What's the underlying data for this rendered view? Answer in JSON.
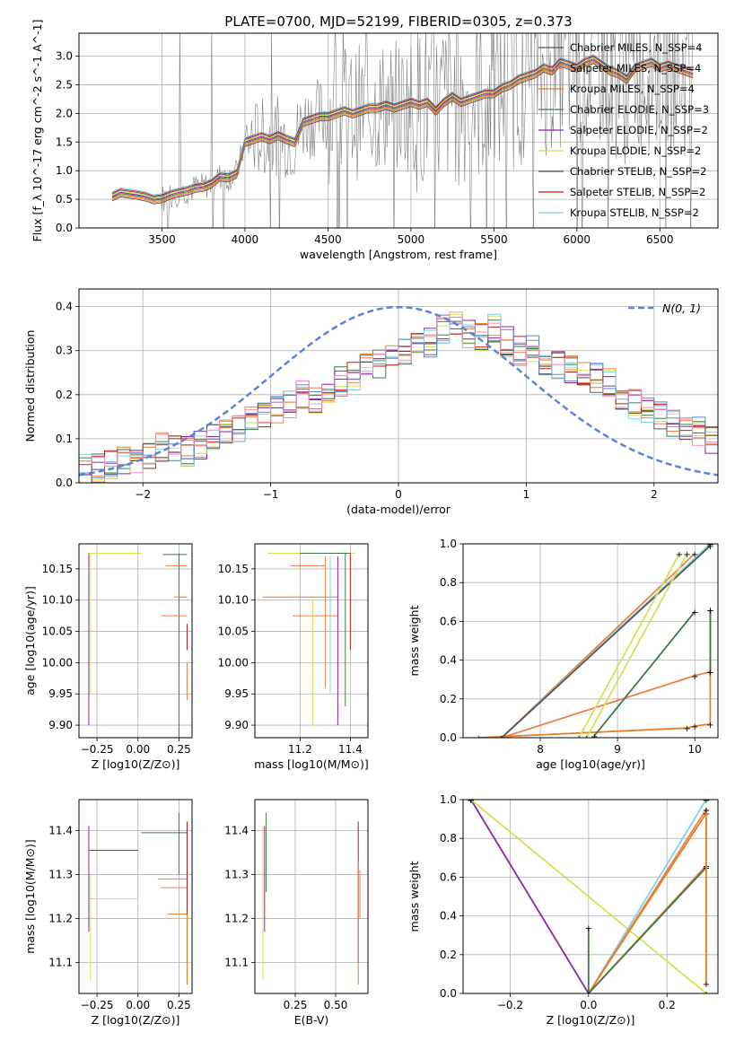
{
  "colors": {
    "palette": [
      "#ef7f4a",
      "#ef7f4a",
      "#e67e22",
      "#3d7a4a",
      "#8e24aa",
      "#d4e157",
      "#555555",
      "#b71c1c",
      "#80d4e8"
    ],
    "miles_chabrier": "#808080",
    "normal_curve": "#5b84d8",
    "grid": "#b0b0b0"
  },
  "chart_data": [
    {
      "id": "spectrum",
      "type": "line",
      "title": "PLATE=0700, MJD=52199, FIBERID=0305, z=0.373",
      "xlabel": "wavelength [Angstrom, rest frame]",
      "ylabel": "Flux [f_λ 10^-17 erg cm^-2 s^-1 A^-1]",
      "xlim": [
        3000,
        6850
      ],
      "ylim": [
        0,
        3.4
      ],
      "xticks": [
        "3500",
        "4000",
        "4500",
        "5000",
        "5500",
        "6000",
        "6500"
      ],
      "yticks": [
        "0.0",
        "0.5",
        "1.0",
        "1.5",
        "2.0",
        "2.5",
        "3.0"
      ],
      "grid": true,
      "legend_position": "top-right",
      "legend": [
        "Chabrier MILES, N_SSP=4",
        "Salpeter MILES, N_SSP=4",
        "Kroupa MILES, N_SSP=4",
        "Chabrier ELODIE, N_SSP=3",
        "Salpeter ELODIE, N_SSP=2",
        "Kroupa ELODIE, N_SSP=2",
        "Chabrier STELIB, N_SSP=2",
        "Salpeter STELIB, N_SSP=2",
        "Kroupa STELIB, N_SSP=2"
      ],
      "legend_colors": [
        "#555555",
        "#ef7f4a",
        "#e67e22",
        "#3d7a4a",
        "#8e24aa",
        "#d4e157",
        "#555555",
        "#b71c1c",
        "#80d4e8"
      ],
      "model_x": [
        3200,
        3250,
        3300,
        3350,
        3400,
        3450,
        3500,
        3550,
        3600,
        3650,
        3700,
        3750,
        3800,
        3850,
        3900,
        3950,
        4000,
        4050,
        4100,
        4150,
        4200,
        4250,
        4300,
        4350,
        4400,
        4450,
        4500,
        4550,
        4600,
        4650,
        4700,
        4750,
        4800,
        4850,
        4900,
        4950,
        5000,
        5050,
        5100,
        5150,
        5200,
        5250,
        5300,
        5350,
        5400,
        5450,
        5500,
        5550,
        5600,
        5650,
        5700,
        5750,
        5800,
        5850,
        5900,
        5950,
        6000,
        6050,
        6100,
        6150,
        6200,
        6250,
        6300,
        6350,
        6400,
        6450,
        6500,
        6550,
        6600,
        6650,
        6700
      ],
      "model_y": [
        0.55,
        0.62,
        0.6,
        0.58,
        0.55,
        0.5,
        0.52,
        0.58,
        0.62,
        0.65,
        0.7,
        0.72,
        0.78,
        0.9,
        0.88,
        0.95,
        1.5,
        1.55,
        1.6,
        1.55,
        1.62,
        1.55,
        1.5,
        1.85,
        1.9,
        1.95,
        1.95,
        2.0,
        2.05,
        2.0,
        2.05,
        2.1,
        2.1,
        2.15,
        2.1,
        2.15,
        2.2,
        2.15,
        2.2,
        2.05,
        2.2,
        2.3,
        2.2,
        2.25,
        2.3,
        2.35,
        2.35,
        2.45,
        2.5,
        2.6,
        2.65,
        2.7,
        2.8,
        2.75,
        2.9,
        2.85,
        2.8,
        2.9,
        2.95,
        2.85,
        2.75,
        2.7,
        2.6,
        2.8,
        2.85,
        2.9,
        2.8,
        2.85,
        2.8,
        2.75,
        2.7
      ]
    },
    {
      "id": "residuals",
      "type": "line",
      "xlabel": "(data-model)/error",
      "ylabel": "Normed distribution",
      "xlim": [
        -2.5,
        2.5
      ],
      "ylim": [
        0,
        0.44
      ],
      "xticks": [
        "−2",
        "−1",
        "0",
        "1",
        "2"
      ],
      "yticks": [
        "0.0",
        "0.1",
        "0.2",
        "0.3",
        "0.4"
      ],
      "grid": true,
      "legend_position": "top-right",
      "legend": [
        "N(0, 1)"
      ],
      "hist_bin_width": 0.1,
      "hist_x_start": -2.5,
      "hist_y": [
        0.03,
        0.035,
        0.04,
        0.05,
        0.045,
        0.06,
        0.08,
        0.075,
        0.07,
        0.085,
        0.1,
        0.11,
        0.12,
        0.14,
        0.16,
        0.17,
        0.18,
        0.2,
        0.19,
        0.21,
        0.23,
        0.24,
        0.26,
        0.27,
        0.29,
        0.3,
        0.31,
        0.32,
        0.35,
        0.36,
        0.34,
        0.33,
        0.35,
        0.32,
        0.3,
        0.31,
        0.28,
        0.27,
        0.26,
        0.25,
        0.24,
        0.23,
        0.2,
        0.18,
        0.17,
        0.15,
        0.14,
        0.13,
        0.12,
        0.1
      ]
    },
    {
      "id": "age-vs-Z",
      "type": "scatter",
      "xlabel": "Z [log10(Z/Z⊙)]",
      "ylabel": "age  [log10(age/yr)]",
      "xlim": [
        -0.36,
        0.33
      ],
      "ylim": [
        9.88,
        10.19
      ],
      "xticks": [
        "−0.25",
        "0.00",
        "0.25"
      ],
      "yticks": [
        "9.90",
        "9.95",
        "10.00",
        "10.05",
        "10.10",
        "10.15"
      ],
      "grid": true,
      "segments": [
        {
          "x": [
            -0.3,
            0.02
          ],
          "y": [
            10.175,
            10.175
          ],
          "c": 5
        },
        {
          "x": [
            -0.3,
            -0.3
          ],
          "y": [
            9.9,
            10.175
          ],
          "c": 4
        },
        {
          "x": [
            -0.29,
            -0.29
          ],
          "y": [
            9.95,
            10.175
          ],
          "c": 5
        },
        {
          "x": [
            0.15,
            0.3
          ],
          "y": [
            10.173,
            10.173
          ],
          "c": 3
        },
        {
          "x": [
            0.25,
            0.25
          ],
          "y": [
            9.88,
            10.175
          ],
          "c": 3
        },
        {
          "x": [
            0.17,
            0.3
          ],
          "y": [
            10.155,
            10.155
          ],
          "c": 0
        },
        {
          "x": [
            0.22,
            0.3
          ],
          "y": [
            10.105,
            10.105
          ],
          "c": 2
        },
        {
          "x": [
            0.14,
            0.3
          ],
          "y": [
            10.075,
            10.075
          ],
          "c": 1
        },
        {
          "x": [
            0.3,
            0.3
          ],
          "y": [
            10.02,
            10.062
          ],
          "c": 7
        },
        {
          "x": [
            0.3,
            0.3
          ],
          "y": [
            9.94,
            10.0
          ],
          "c": 1
        }
      ]
    },
    {
      "id": "age-vs-mass",
      "type": "scatter",
      "xlabel": "mass [log10(M/M⊙)]",
      "ylabel": "",
      "xlim": [
        11.02,
        11.47
      ],
      "ylim": [
        9.88,
        10.19
      ],
      "xticks": [
        "11.2",
        "11.4"
      ],
      "yticks": [
        "10.15",
        "10.10",
        "10.05",
        "10.00",
        "9.95",
        "9.90"
      ],
      "grid": true,
      "segments": [
        {
          "x": [
            11.07,
            11.42
          ],
          "y": [
            10.175,
            10.175
          ],
          "c": 5
        },
        {
          "x": [
            11.2,
            11.4
          ],
          "y": [
            10.175,
            10.175
          ],
          "c": 3
        },
        {
          "x": [
            11.16,
            11.3
          ],
          "y": [
            10.155,
            10.155
          ],
          "c": 0
        },
        {
          "x": [
            11.05,
            11.35
          ],
          "y": [
            10.105,
            10.105
          ],
          "c": 2
        },
        {
          "x": [
            11.17,
            11.35
          ],
          "y": [
            10.075,
            10.075
          ],
          "c": 1
        },
        {
          "x": [
            11.25,
            11.25
          ],
          "y": [
            9.9,
            10.1
          ],
          "c": 5
        },
        {
          "x": [
            11.3,
            11.3
          ],
          "y": [
            9.96,
            10.17
          ],
          "c": 0
        },
        {
          "x": [
            11.32,
            11.32
          ],
          "y": [
            9.95,
            10.17
          ],
          "c": 8
        },
        {
          "x": [
            11.35,
            11.35
          ],
          "y": [
            9.9,
            10.17
          ],
          "c": 4
        },
        {
          "x": [
            11.4,
            11.4
          ],
          "y": [
            10.02,
            10.175
          ],
          "c": 7
        },
        {
          "x": [
            11.38,
            11.38
          ],
          "y": [
            9.93,
            10.175
          ],
          "c": 3
        }
      ]
    },
    {
      "id": "mass-weight-vs-age",
      "type": "line",
      "xlabel": "age  [log10(age/yr)]",
      "ylabel": "mass weight",
      "xlim": [
        7.0,
        10.3
      ],
      "ylim": [
        0,
        1.0
      ],
      "xticks": [
        "8",
        "9",
        "10"
      ],
      "yticks": [
        "0.0",
        "0.2",
        "0.4",
        "0.6",
        "0.8",
        "1.0"
      ],
      "grid": true,
      "series": [
        {
          "x": [
            7.5,
            10.0,
            10.2,
            10.2
          ],
          "y": [
            0.0,
            0.32,
            0.34,
            0.66
          ],
          "c": 0
        },
        {
          "x": [
            7.2,
            9.9,
            10.0,
            10.2,
            10.2
          ],
          "y": [
            0.0,
            0.05,
            0.06,
            0.07,
            0.66
          ],
          "c": 2
        },
        {
          "x": [
            7.5,
            10.0
          ],
          "y": [
            0.0,
            0.95
          ],
          "c": 1
        },
        {
          "x": [
            7.5,
            10.2
          ],
          "y": [
            0.0,
            1.0
          ],
          "c": 8
        },
        {
          "x": [
            7.5,
            10.2
          ],
          "y": [
            0.0,
            0.99
          ],
          "c": 6
        },
        {
          "x": [
            8.5,
            9.8
          ],
          "y": [
            0.0,
            0.95
          ],
          "c": 5
        },
        {
          "x": [
            8.6,
            9.9
          ],
          "y": [
            0.0,
            0.95
          ],
          "c": 5
        },
        {
          "x": [
            8.7,
            10.0
          ],
          "y": [
            0.01,
            0.65
          ],
          "c": 3
        },
        {
          "x": [
            10.2,
            10.2
          ],
          "y": [
            0.34,
            0.66
          ],
          "c": 3
        }
      ]
    },
    {
      "id": "mass-vs-Z",
      "type": "scatter",
      "xlabel": "Z [log10(Z/Z⊙)]",
      "ylabel": "mass [log10(M/M⊙)]",
      "xlim": [
        -0.36,
        0.33
      ],
      "ylim": [
        11.03,
        11.47
      ],
      "xticks": [
        "−0.25",
        "0.00",
        "0.25"
      ],
      "yticks": [
        "11.1",
        "11.2",
        "11.3",
        "11.4"
      ],
      "grid": true,
      "segments": [
        {
          "x": [
            -0.3,
            0.0
          ],
          "y": [
            11.355,
            11.355
          ],
          "c": 4
        },
        {
          "x": [
            -0.3,
            0.0
          ],
          "y": [
            11.245,
            11.245
          ],
          "c": 5
        },
        {
          "x": [
            -0.3,
            -0.3
          ],
          "y": [
            11.17,
            11.41
          ],
          "c": 4
        },
        {
          "x": [
            -0.29,
            -0.29
          ],
          "y": [
            11.06,
            11.3
          ],
          "c": 5
        },
        {
          "x": [
            0.02,
            0.3
          ],
          "y": [
            11.395,
            11.395
          ],
          "c": 3
        },
        {
          "x": [
            0.25,
            0.25
          ],
          "y": [
            11.3,
            11.44
          ],
          "c": 3
        },
        {
          "x": [
            0.3,
            0.3
          ],
          "y": [
            11.1,
            11.42
          ],
          "c": 7
        },
        {
          "x": [
            0.12,
            0.3
          ],
          "y": [
            11.29,
            11.29
          ],
          "c": 1
        },
        {
          "x": [
            0.14,
            0.3
          ],
          "y": [
            11.27,
            11.27
          ],
          "c": 0
        },
        {
          "x": [
            0.18,
            0.3
          ],
          "y": [
            11.21,
            11.21
          ],
          "c": 2
        },
        {
          "x": [
            0.3,
            0.3
          ],
          "y": [
            11.05,
            11.21
          ],
          "c": 2
        }
      ]
    },
    {
      "id": "mass-vs-ebv",
      "type": "scatter",
      "xlabel": "E(B-V)",
      "ylabel": "",
      "xlim": [
        0.0,
        0.7
      ],
      "ylim": [
        11.03,
        11.47
      ],
      "xticks": [
        "0.25",
        "0.50"
      ],
      "yticks": [
        "11.4",
        "11.3",
        "11.2",
        "11.1"
      ],
      "grid": true,
      "segments": [
        {
          "x": [
            0.05,
            0.05
          ],
          "y": [
            11.06,
            11.41
          ],
          "c": 5
        },
        {
          "x": [
            0.06,
            0.06
          ],
          "y": [
            11.17,
            11.41
          ],
          "c": 4
        },
        {
          "x": [
            0.07,
            0.07
          ],
          "y": [
            11.26,
            11.44
          ],
          "c": 3
        },
        {
          "x": [
            0.64,
            0.64
          ],
          "y": [
            11.1,
            11.42
          ],
          "c": 7
        },
        {
          "x": [
            0.64,
            0.64
          ],
          "y": [
            11.05,
            11.33
          ],
          "c": 2
        },
        {
          "x": [
            0.65,
            0.65
          ],
          "y": [
            11.2,
            11.31
          ],
          "c": 0
        }
      ]
    },
    {
      "id": "mass-weight-vs-Z",
      "type": "line",
      "xlabel": "Z [log10(Z/Z⊙)]",
      "ylabel": "mass weight",
      "xlim": [
        -0.32,
        0.33
      ],
      "ylim": [
        0,
        1.0
      ],
      "xticks": [
        "−0.2",
        "0.0",
        "0.2"
      ],
      "yticks": [
        "0.0",
        "0.2",
        "0.4",
        "0.6",
        "0.8",
        "1.0"
      ],
      "grid": true,
      "series": [
        {
          "x": [
            -0.3,
            0.0
          ],
          "y": [
            1.0,
            0.0
          ],
          "c": 4
        },
        {
          "x": [
            -0.3,
            0.3
          ],
          "y": [
            1.0,
            0.0
          ],
          "c": 5
        },
        {
          "x": [
            0.0,
            0.3
          ],
          "y": [
            0.0,
            1.0
          ],
          "c": 8
        },
        {
          "x": [
            0.0,
            0.3
          ],
          "y": [
            0.0,
            0.95
          ],
          "c": 1
        },
        {
          "x": [
            0.0,
            0.3
          ],
          "y": [
            0.0,
            0.93
          ],
          "c": 2
        },
        {
          "x": [
            0.0,
            0.3
          ],
          "y": [
            0.0,
            0.66
          ],
          "c": 0
        },
        {
          "x": [
            0.0,
            0.3
          ],
          "y": [
            0.0,
            0.65
          ],
          "c": 3
        },
        {
          "x": [
            0.0,
            0.0
          ],
          "y": [
            0.0,
            0.34
          ],
          "c": 3
        },
        {
          "x": [
            0.3,
            0.3
          ],
          "y": [
            0.05,
            0.95
          ],
          "c": 2
        }
      ]
    }
  ]
}
